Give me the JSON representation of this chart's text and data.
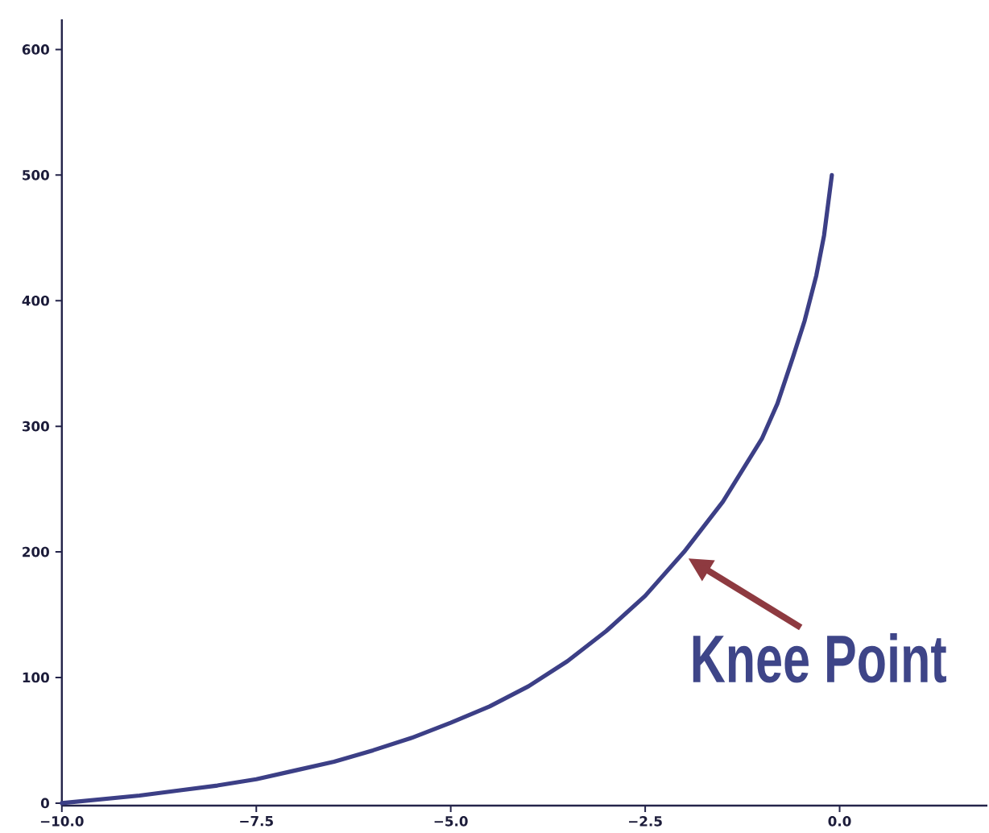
{
  "chart_data": {
    "type": "line",
    "x": [
      -10,
      -9.5,
      -9,
      -8.5,
      -8,
      -7.5,
      -7,
      -6.5,
      -6,
      -5.5,
      -5,
      -4.5,
      -4,
      -3.5,
      -3,
      -2.5,
      -2,
      -1.5,
      -1,
      -0.8,
      -0.6,
      -0.45,
      -0.3,
      -0.2,
      -0.1
    ],
    "values": [
      0,
      3,
      6,
      10,
      14,
      19,
      26,
      33,
      42,
      52,
      64,
      77,
      93,
      113,
      137,
      165,
      200,
      240,
      290,
      318,
      355,
      384,
      420,
      452,
      500
    ],
    "color": "#3c3f86",
    "line_style": "solid",
    "xlim": [
      -10,
      1.9
    ],
    "ylim": [
      -2,
      624
    ],
    "xticks": [
      {
        "value": -10,
        "label": "−10.0"
      },
      {
        "value": -7.5,
        "label": "−7.5"
      },
      {
        "value": -5,
        "label": "−5.0"
      },
      {
        "value": -2.5,
        "label": "−2.5"
      },
      {
        "value": 0,
        "label": "0.0"
      }
    ],
    "yticks": [
      0,
      100,
      200,
      300,
      400,
      500,
      600
    ],
    "annotations": [
      {
        "text": "Knee Point",
        "x": -1.95,
        "y": 195
      }
    ]
  }
}
